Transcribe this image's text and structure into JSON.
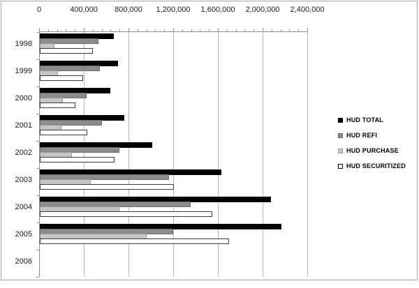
{
  "chart_data": {
    "type": "bar",
    "orientation": "horizontal",
    "title": "",
    "categories": [
      "1998",
      "1999",
      "2000",
      "2001",
      "2002",
      "2003",
      "2004",
      "2005",
      "2006"
    ],
    "series": [
      {
        "name": "HUD TOTAL",
        "color": "#000000",
        "border_color": "#000000",
        "values": [
          665000,
          700000,
          630000,
          755000,
          1005000,
          1625000,
          2070000,
          2160000,
          0
        ]
      },
      {
        "name": "HUD REFI",
        "color": "#8c8c8c",
        "border_color": "#6b6b6b",
        "values": [
          525000,
          540000,
          420000,
          555000,
          715000,
          1155000,
          1350000,
          1195000,
          0
        ]
      },
      {
        "name": "HUD PURCHASE",
        "color": "#c6c6c6",
        "border_color": "#969696",
        "values": [
          130000,
          165000,
          205000,
          195000,
          290000,
          455000,
          710000,
          955000,
          0
        ]
      },
      {
        "name": "HUD SECURITIZED",
        "color": "#ffffff",
        "border_color": "#3c3c3c",
        "values": [
          475000,
          390000,
          320000,
          425000,
          670000,
          1200000,
          1545000,
          1695000,
          0
        ]
      }
    ],
    "x_axis": {
      "position": "top",
      "min": 0,
      "max": 2400000,
      "major_tick": 400000,
      "minor_tick": 80000,
      "tick_labels": [
        "0",
        "400,000",
        "800,000",
        "1,200,000",
        "1,600,000",
        "2,000,000",
        "2,400,000"
      ]
    },
    "y_axis": {
      "tick_labels": [
        "1998",
        "1999",
        "2000",
        "2001",
        "2002",
        "2003",
        "2004",
        "2005",
        "2006"
      ]
    },
    "legend": {
      "position": "right",
      "entries": [
        "HUD TOTAL",
        "HUD REFI",
        "HUD PURCHASE",
        "HUD SECURITIZED"
      ]
    },
    "grid": true,
    "colors": {
      "gridline": "#b8b8b8",
      "axis": "#8f8f8f",
      "frame_border": "#a3a3a3",
      "background": "#ffffff",
      "text": "#1a1a1a"
    }
  }
}
